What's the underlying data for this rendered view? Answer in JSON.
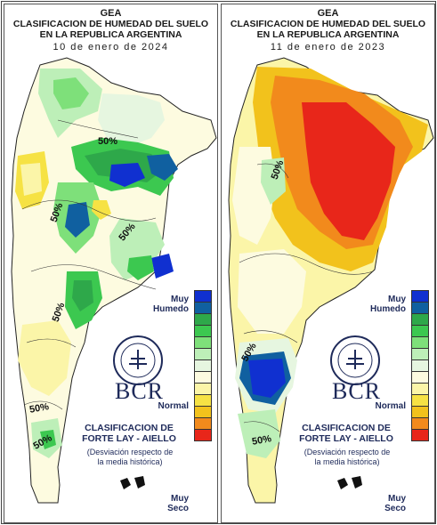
{
  "panels": [
    {
      "org": "GEA",
      "title_line1": "CLASIFICACION DE HUMEDAD DEL SUELO",
      "title_line2": "EN LA REPUBLICA ARGENTINA",
      "date": "10 de enero de 2024",
      "isoline_labels": [
        "50%",
        "50%",
        "50%",
        "50%",
        "50%",
        "50%"
      ]
    },
    {
      "org": "GEA",
      "title_line1": "CLASIFICACION DE HUMEDAD DEL SUELO",
      "title_line2": "EN LA REPUBLICA ARGENTINA",
      "date": "11 de enero de 2023",
      "isoline_labels": [
        "50%",
        "50%",
        "50%"
      ]
    }
  ],
  "legend": {
    "label_top": "Muy",
    "label_top2": "Humedo",
    "label_mid": "Normal",
    "label_bottom": "Muy",
    "label_bottom2": "Seco",
    "colors": [
      "#1030d0",
      "#1060a0",
      "#2ea84a",
      "#3cc850",
      "#7ee07a",
      "#bdefb8",
      "#e6f6e0",
      "#fdfbe0",
      "#fbf5a8",
      "#f6e244",
      "#f2c21c",
      "#f28a1c",
      "#e8261a"
    ]
  },
  "logo": {
    "text": "BCR",
    "ring_text": "BOLSA DE COMERCIO DE ROSARIO"
  },
  "classification": {
    "line1": "CLASIFICACION DE",
    "line2": "FORTE LAY - AIELLO",
    "note1": "(Desviación respecto de",
    "note2": "la media histórica)"
  }
}
